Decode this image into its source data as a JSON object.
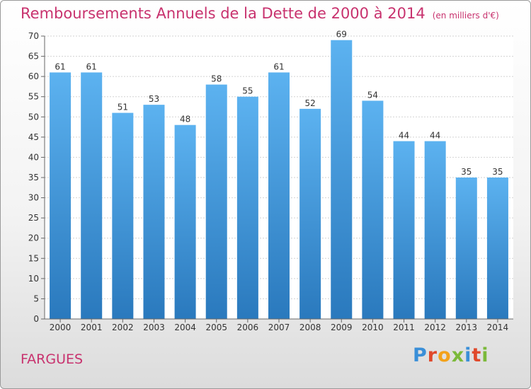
{
  "title": "Remboursements Annuels de la Dette de 2000 à 2014",
  "unit_label": "(en milliers d'€)",
  "commune": "FARGUES",
  "logo": {
    "letters": [
      "P",
      "r",
      "o",
      "x",
      "i",
      "t",
      "i"
    ],
    "colors": [
      "#3a8fd8",
      "#e0492b",
      "#f3a21b",
      "#7bb93a",
      "#3a8fd8",
      "#e0492b",
      "#7bb93a"
    ]
  },
  "colors": {
    "bar_top": "#5cb2f0",
    "bar_bottom": "#2a79bd",
    "title": "#c8326e"
  },
  "chart_data": {
    "type": "bar",
    "title": "Remboursements Annuels de la Dette de 2000 à 2014",
    "ylabel": "en milliers d'€",
    "xlabel": "",
    "categories": [
      "2000",
      "2001",
      "2002",
      "2003",
      "2004",
      "2005",
      "2006",
      "2007",
      "2008",
      "2009",
      "2010",
      "2011",
      "2012",
      "2013",
      "2014"
    ],
    "values": [
      61,
      61,
      51,
      53,
      48,
      58,
      55,
      61,
      52,
      69,
      54,
      44,
      44,
      35,
      35
    ],
    "ylim": [
      0,
      70
    ],
    "yticks": [
      0,
      5,
      10,
      15,
      20,
      25,
      30,
      35,
      40,
      45,
      50,
      55,
      60,
      65,
      70
    ],
    "grid": true
  }
}
